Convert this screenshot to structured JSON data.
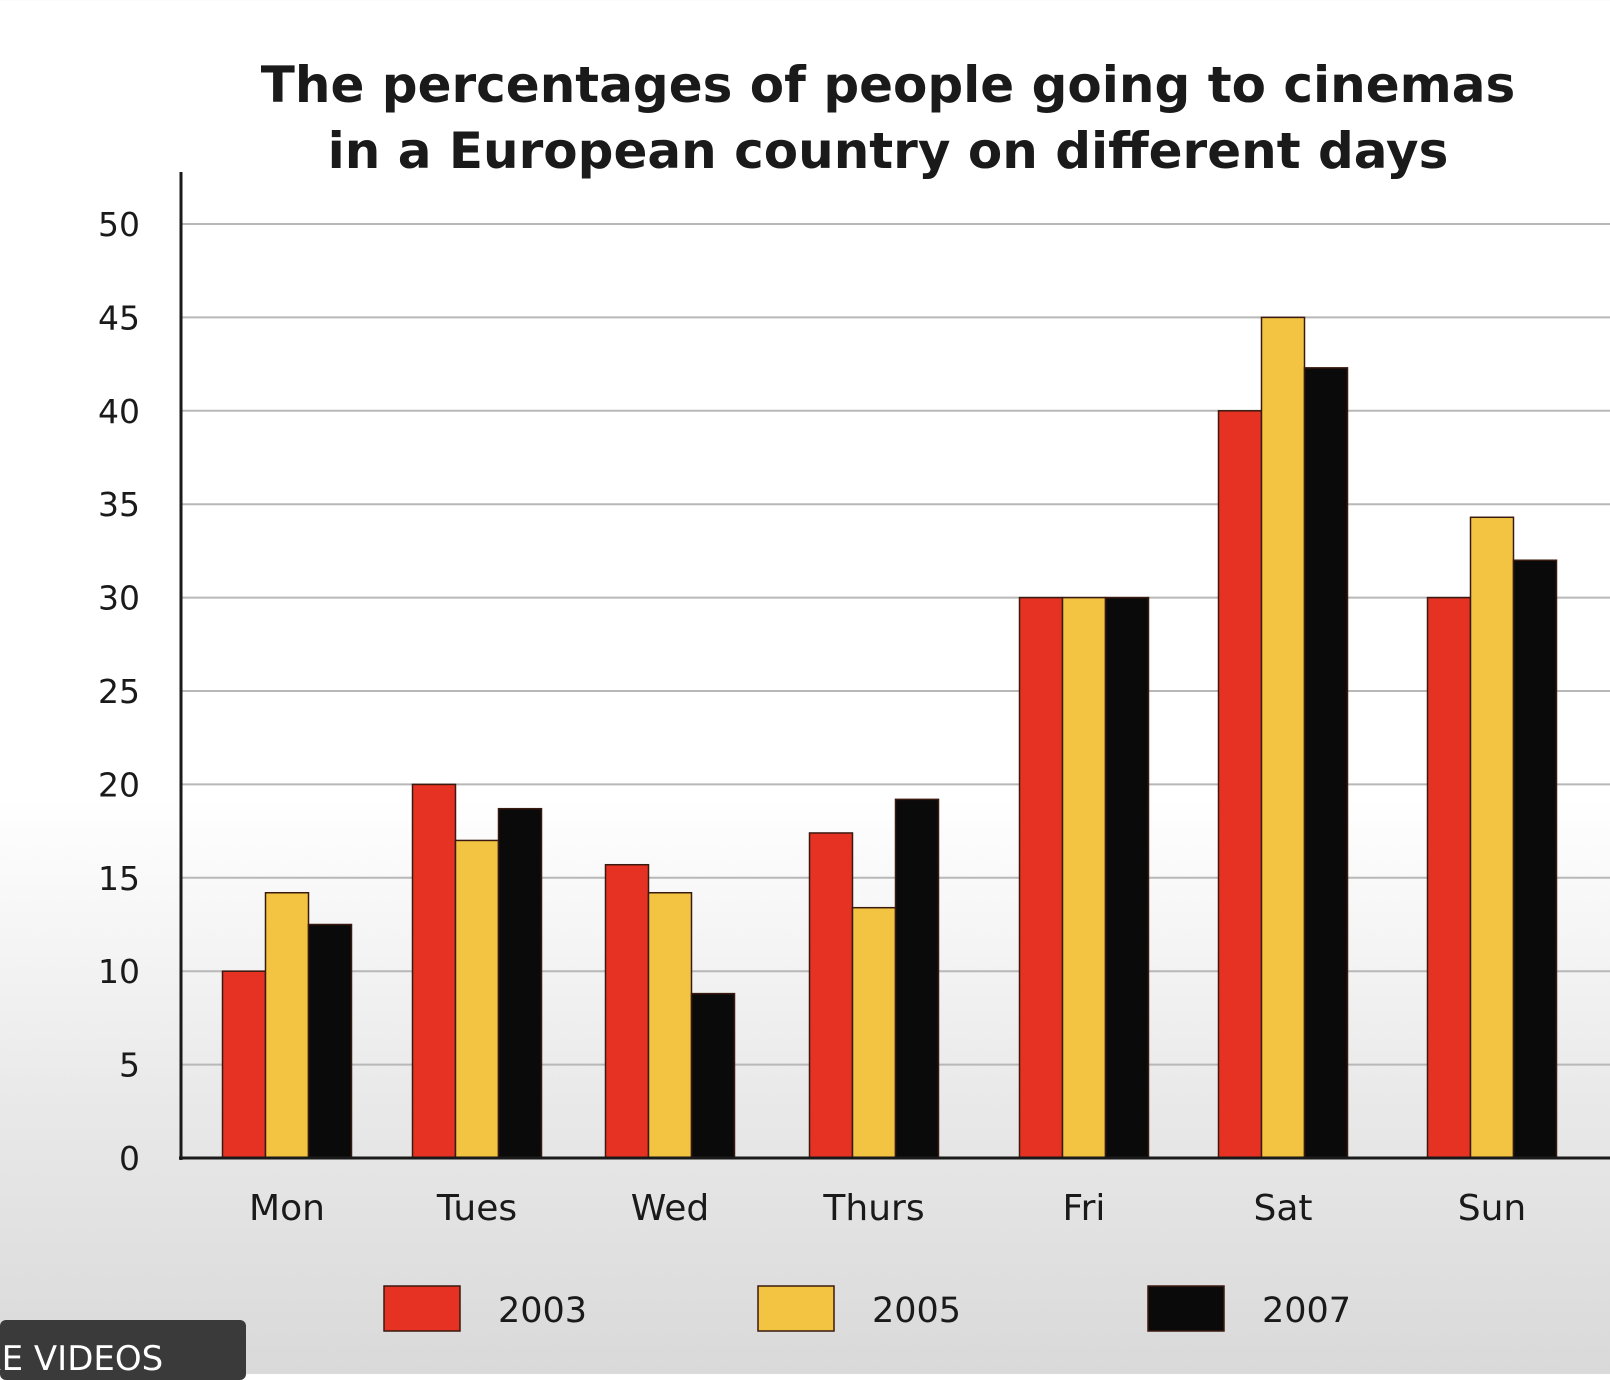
{
  "chart_data": {
    "type": "bar",
    "title_lines": [
      "The percentages of people going to cinemas",
      "in a European country on different days"
    ],
    "xlabel": "",
    "ylabel": "",
    "categories": [
      "Mon",
      "Tues",
      "Wed",
      "Thurs",
      "Fri",
      "Sat",
      "Sun"
    ],
    "series": [
      {
        "name": "2003",
        "color": "#e53222",
        "values": [
          10,
          20,
          15.7,
          17.4,
          30,
          40,
          30
        ]
      },
      {
        "name": "2005",
        "color": "#f2c442",
        "values": [
          14.2,
          17,
          14.2,
          13.4,
          30,
          45,
          34.3
        ]
      },
      {
        "name": "2007",
        "color": "#0a0a0a",
        "values": [
          12.5,
          18.7,
          8.8,
          19.2,
          30,
          42.3,
          32
        ]
      }
    ],
    "ylim": [
      0,
      50
    ],
    "yticks": [
      0,
      5,
      10,
      15,
      20,
      25,
      30,
      35,
      40,
      45,
      50
    ],
    "grid": true,
    "legend_position": "bottom"
  },
  "overlay": {
    "label": "RE VIDEOS"
  }
}
